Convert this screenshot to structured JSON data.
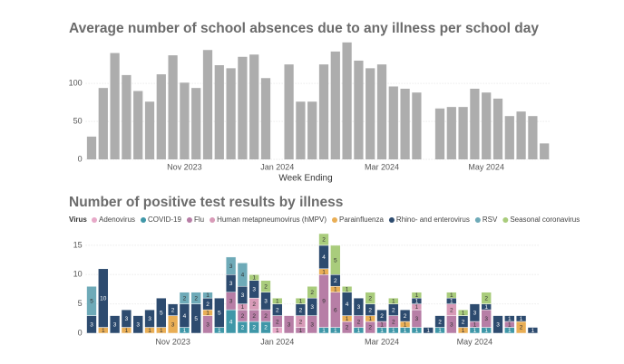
{
  "chart_data": [
    {
      "type": "bar",
      "title": "Average number of school absences due to any illness per school day",
      "x_label": "Week Ending",
      "categories": [
        null,
        null,
        null,
        null,
        null,
        null,
        null,
        null,
        "Nov 2023",
        null,
        null,
        null,
        null,
        null,
        null,
        null,
        "Jan 2024",
        null,
        null,
        null,
        null,
        null,
        null,
        null,
        null,
        "Mar 2024",
        null,
        null,
        null,
        null,
        null,
        null,
        null,
        null,
        "May 2024",
        null,
        null,
        null,
        null,
        null
      ],
      "values": [
        30,
        94,
        140,
        111,
        90,
        76,
        112,
        137,
        101,
        94,
        144,
        124,
        120,
        135,
        138,
        107,
        null,
        125,
        76,
        76,
        125,
        142,
        154,
        130,
        120,
        125,
        96,
        93,
        88,
        null,
        67,
        69,
        69,
        93,
        88,
        80,
        57,
        63,
        57,
        21
      ],
      "color": "#adadad",
      "ylim": [
        0,
        155
      ],
      "yticks": [
        0,
        50,
        100
      ],
      "grid": true
    },
    {
      "type": "stacked_bar",
      "title": "Number of positive test results by illness",
      "legend_title": "Virus",
      "categories": [
        null,
        null,
        null,
        null,
        null,
        null,
        null,
        "Nov 2023",
        null,
        null,
        null,
        null,
        null,
        null,
        null,
        null,
        "Jan 2024",
        null,
        null,
        null,
        null,
        null,
        null,
        null,
        null,
        "Mar 2024",
        null,
        null,
        null,
        null,
        null,
        null,
        null,
        "May 2024",
        null,
        null,
        null,
        null,
        null
      ],
      "series": [
        {
          "name": "Adenovirus",
          "color": "#e7a9c8",
          "values": [
            null,
            null,
            null,
            null,
            null,
            null,
            null,
            null,
            null,
            null,
            null,
            null,
            null,
            null,
            null,
            null,
            1,
            null,
            null,
            null,
            null,
            null,
            null,
            null,
            null,
            null,
            null,
            null,
            null,
            null,
            null,
            null,
            null,
            null,
            null,
            null,
            null,
            null,
            null
          ]
        },
        {
          "name": "COVID-19",
          "color": "#3f97a8",
          "values": [
            null,
            null,
            null,
            null,
            null,
            null,
            null,
            null,
            1,
            null,
            null,
            1,
            4,
            2,
            2,
            2,
            null,
            null,
            null,
            null,
            1,
            1,
            null,
            1,
            null,
            1,
            1,
            1,
            1,
            null,
            1,
            null,
            null,
            1,
            1,
            null,
            1,
            null,
            null
          ]
        },
        {
          "name": "Flu",
          "color": "#b77ea6",
          "values": [
            null,
            null,
            null,
            null,
            null,
            null,
            null,
            null,
            null,
            null,
            3,
            null,
            3,
            2,
            2,
            2,
            2,
            3,
            1,
            3,
            9,
            6,
            2,
            2,
            2,
            1,
            2,
            null,
            3,
            null,
            null,
            3,
            null,
            1,
            3,
            null,
            1,
            null,
            null
          ]
        },
        {
          "name": "Human metapneumovirus (hMPV)",
          "color": "#d89bb8",
          "values": [
            null,
            null,
            null,
            null,
            null,
            null,
            null,
            null,
            null,
            null,
            null,
            null,
            null,
            1,
            2,
            null,
            null,
            null,
            2,
            null,
            null,
            null,
            null,
            null,
            null,
            null,
            null,
            null,
            1,
            null,
            null,
            2,
            null,
            null,
            null,
            null,
            null,
            null,
            null
          ]
        },
        {
          "name": "Parainfluenza",
          "color": "#e9ae55",
          "values": [
            null,
            1,
            null,
            1,
            null,
            1,
            1,
            3,
            null,
            null,
            1,
            null,
            null,
            null,
            null,
            null,
            null,
            null,
            null,
            null,
            1,
            1,
            1,
            null,
            1,
            null,
            null,
            1,
            null,
            null,
            null,
            null,
            1,
            null,
            null,
            null,
            null,
            2,
            null
          ]
        },
        {
          "name": "Rhino- and enterovirus",
          "color": "#2d4b6f",
          "values": [
            3,
            10,
            3,
            3,
            3,
            3,
            5,
            2,
            4,
            5,
            2,
            5,
            3,
            3,
            3,
            3,
            2,
            null,
            2,
            3,
            4,
            2,
            4,
            3,
            2,
            2,
            2,
            2,
            1,
            1,
            2,
            1,
            2,
            3,
            1,
            3,
            1,
            1,
            1
          ]
        },
        {
          "name": "RSV",
          "color": "#6eaab8",
          "values": [
            5,
            null,
            null,
            null,
            null,
            null,
            null,
            null,
            2,
            2,
            1,
            null,
            3,
            4,
            null,
            null,
            null,
            null,
            null,
            null,
            null,
            null,
            null,
            null,
            null,
            null,
            null,
            null,
            null,
            null,
            null,
            null,
            null,
            null,
            null,
            null,
            null,
            null,
            null
          ]
        },
        {
          "name": "Seasonal coronavirus",
          "color": "#a9cc7c",
          "values": [
            null,
            null,
            null,
            null,
            null,
            null,
            null,
            null,
            null,
            null,
            null,
            null,
            null,
            null,
            1,
            2,
            1,
            null,
            1,
            2,
            2,
            5,
            1,
            null,
            2,
            null,
            1,
            null,
            1,
            null,
            null,
            1,
            1,
            null,
            2,
            null,
            null,
            null,
            null
          ]
        }
      ],
      "ylim": [
        0,
        18
      ],
      "yticks": [
        0,
        5,
        10,
        15
      ],
      "grid": true
    }
  ]
}
